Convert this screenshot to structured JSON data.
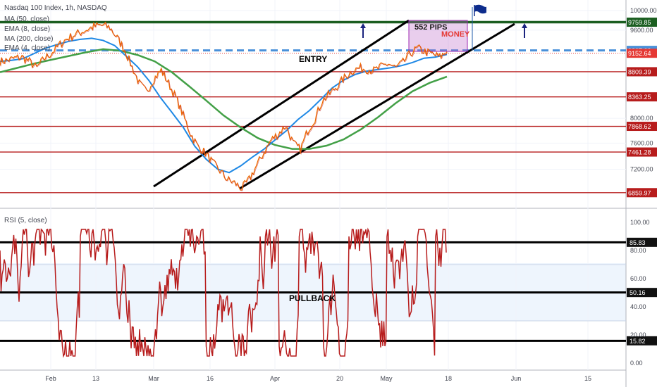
{
  "chart_data": [
    {
      "type": "line",
      "title": "Nasdaq 100 Index, 1h, NASDAQ",
      "indicators": [
        "MA (50, close)",
        "EMA (8, close)",
        "MA (200, close)",
        "EMA (4, close)"
      ],
      "x_labels": [
        "Feb",
        "13",
        "Mar",
        "16",
        "Apr",
        "20",
        "May",
        "18",
        "Jun",
        "15"
      ],
      "y_scale": "log",
      "ylim": [
        6700,
        10100
      ],
      "y_ticks": [
        "10000.00",
        "9600.00",
        "8000.00",
        "7600.00",
        "7200.00"
      ],
      "price_line": [
        9000,
        9020,
        9060,
        9080,
        9000,
        8880,
        9050,
        9150,
        9300,
        9420,
        9500,
        9560,
        9620,
        9680,
        9700,
        9650,
        9450,
        9220,
        8900,
        8600,
        8450,
        8680,
        8840,
        8600,
        8350,
        8050,
        7750,
        7550,
        7450,
        7300,
        7180,
        7050,
        7000,
        6920,
        7050,
        7250,
        7450,
        7650,
        7750,
        7880,
        7600,
        7500,
        7800,
        8000,
        8300,
        8420,
        8550,
        8700,
        8820,
        8880,
        8860,
        8830,
        8900,
        8960,
        8880,
        8980,
        9150,
        9250,
        9180,
        9140,
        9080,
        9180
      ],
      "ma50_line": [
        9000,
        9020,
        9050,
        9150,
        9250,
        9320,
        9380,
        9420,
        9440,
        9400,
        9300,
        9100,
        8900,
        8650,
        8350,
        8100,
        7850,
        7550,
        7350,
        7200,
        7150,
        7250,
        7380,
        7500,
        7650,
        7800,
        7980,
        8130,
        8320,
        8520,
        8660,
        8760,
        8820,
        8850,
        8880,
        8920,
        8980,
        9060,
        9080,
        9130
      ],
      "ma200_line": [
        8800,
        8880,
        8960,
        9030,
        9100,
        9170,
        9230,
        9200,
        9120,
        9000,
        8800,
        8550,
        8300,
        8050,
        7850,
        7680,
        7570,
        7510,
        7510,
        7560,
        7660,
        7820,
        8020,
        8250,
        8460,
        8610,
        8720
      ],
      "horizontal_levels": [
        {
          "label": "9759.85",
          "color": "#1b5e20"
        },
        {
          "label": "9207.03",
          "color": "#4a90d9"
        },
        {
          "label": "9152.64",
          "color": "#e53935"
        },
        {
          "label": "8809.39",
          "color": "#b71c1c"
        },
        {
          "label": "8363.25",
          "color": "#b71c1c"
        },
        {
          "label": "7868.62",
          "color": "#b71c1c"
        },
        {
          "label": "7461.28",
          "color": "#b71c1c"
        },
        {
          "label": "6859.97",
          "color": "#b71c1c"
        }
      ],
      "annotations": [
        "552 PIPS",
        "MONEY",
        "ENTRY"
      ]
    },
    {
      "type": "line",
      "title": "RSI (5, close)",
      "ylim": [
        0,
        100
      ],
      "y_ticks": [
        "100.00",
        "80.00",
        "60.00",
        "40.00",
        "20.00",
        "0.00"
      ],
      "levels": [
        {
          "label": "85.83",
          "value": 85.83
        },
        {
          "label": "50.16",
          "value": 50.16
        },
        {
          "label": "15.82",
          "value": 15.82
        }
      ],
      "annotations": [
        "PULLBACK"
      ]
    }
  ]
}
